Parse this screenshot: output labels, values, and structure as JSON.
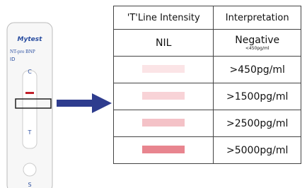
{
  "cassette": {
    "logo": "Mytest",
    "product": "NT-pro BNP",
    "id": "ID",
    "control": "C",
    "test": "T",
    "sample": "S"
  },
  "table": {
    "headers": [
      "'T'Line Intensity",
      "Interpretation"
    ],
    "rows": [
      {
        "intensity": "NIL",
        "interpretation": "Negative",
        "note": "<450pg/ml"
      },
      {
        "swatch": "#fbe4e6",
        "interpretation": ">450pg/ml"
      },
      {
        "swatch": "#f8d3d7",
        "interpretation": ">1500pg/ml"
      },
      {
        "swatch": "#f4c2c7",
        "interpretation": ">2500pg/ml"
      },
      {
        "swatch": "#e8858f",
        "interpretation": ">5000pg/ml"
      }
    ]
  }
}
